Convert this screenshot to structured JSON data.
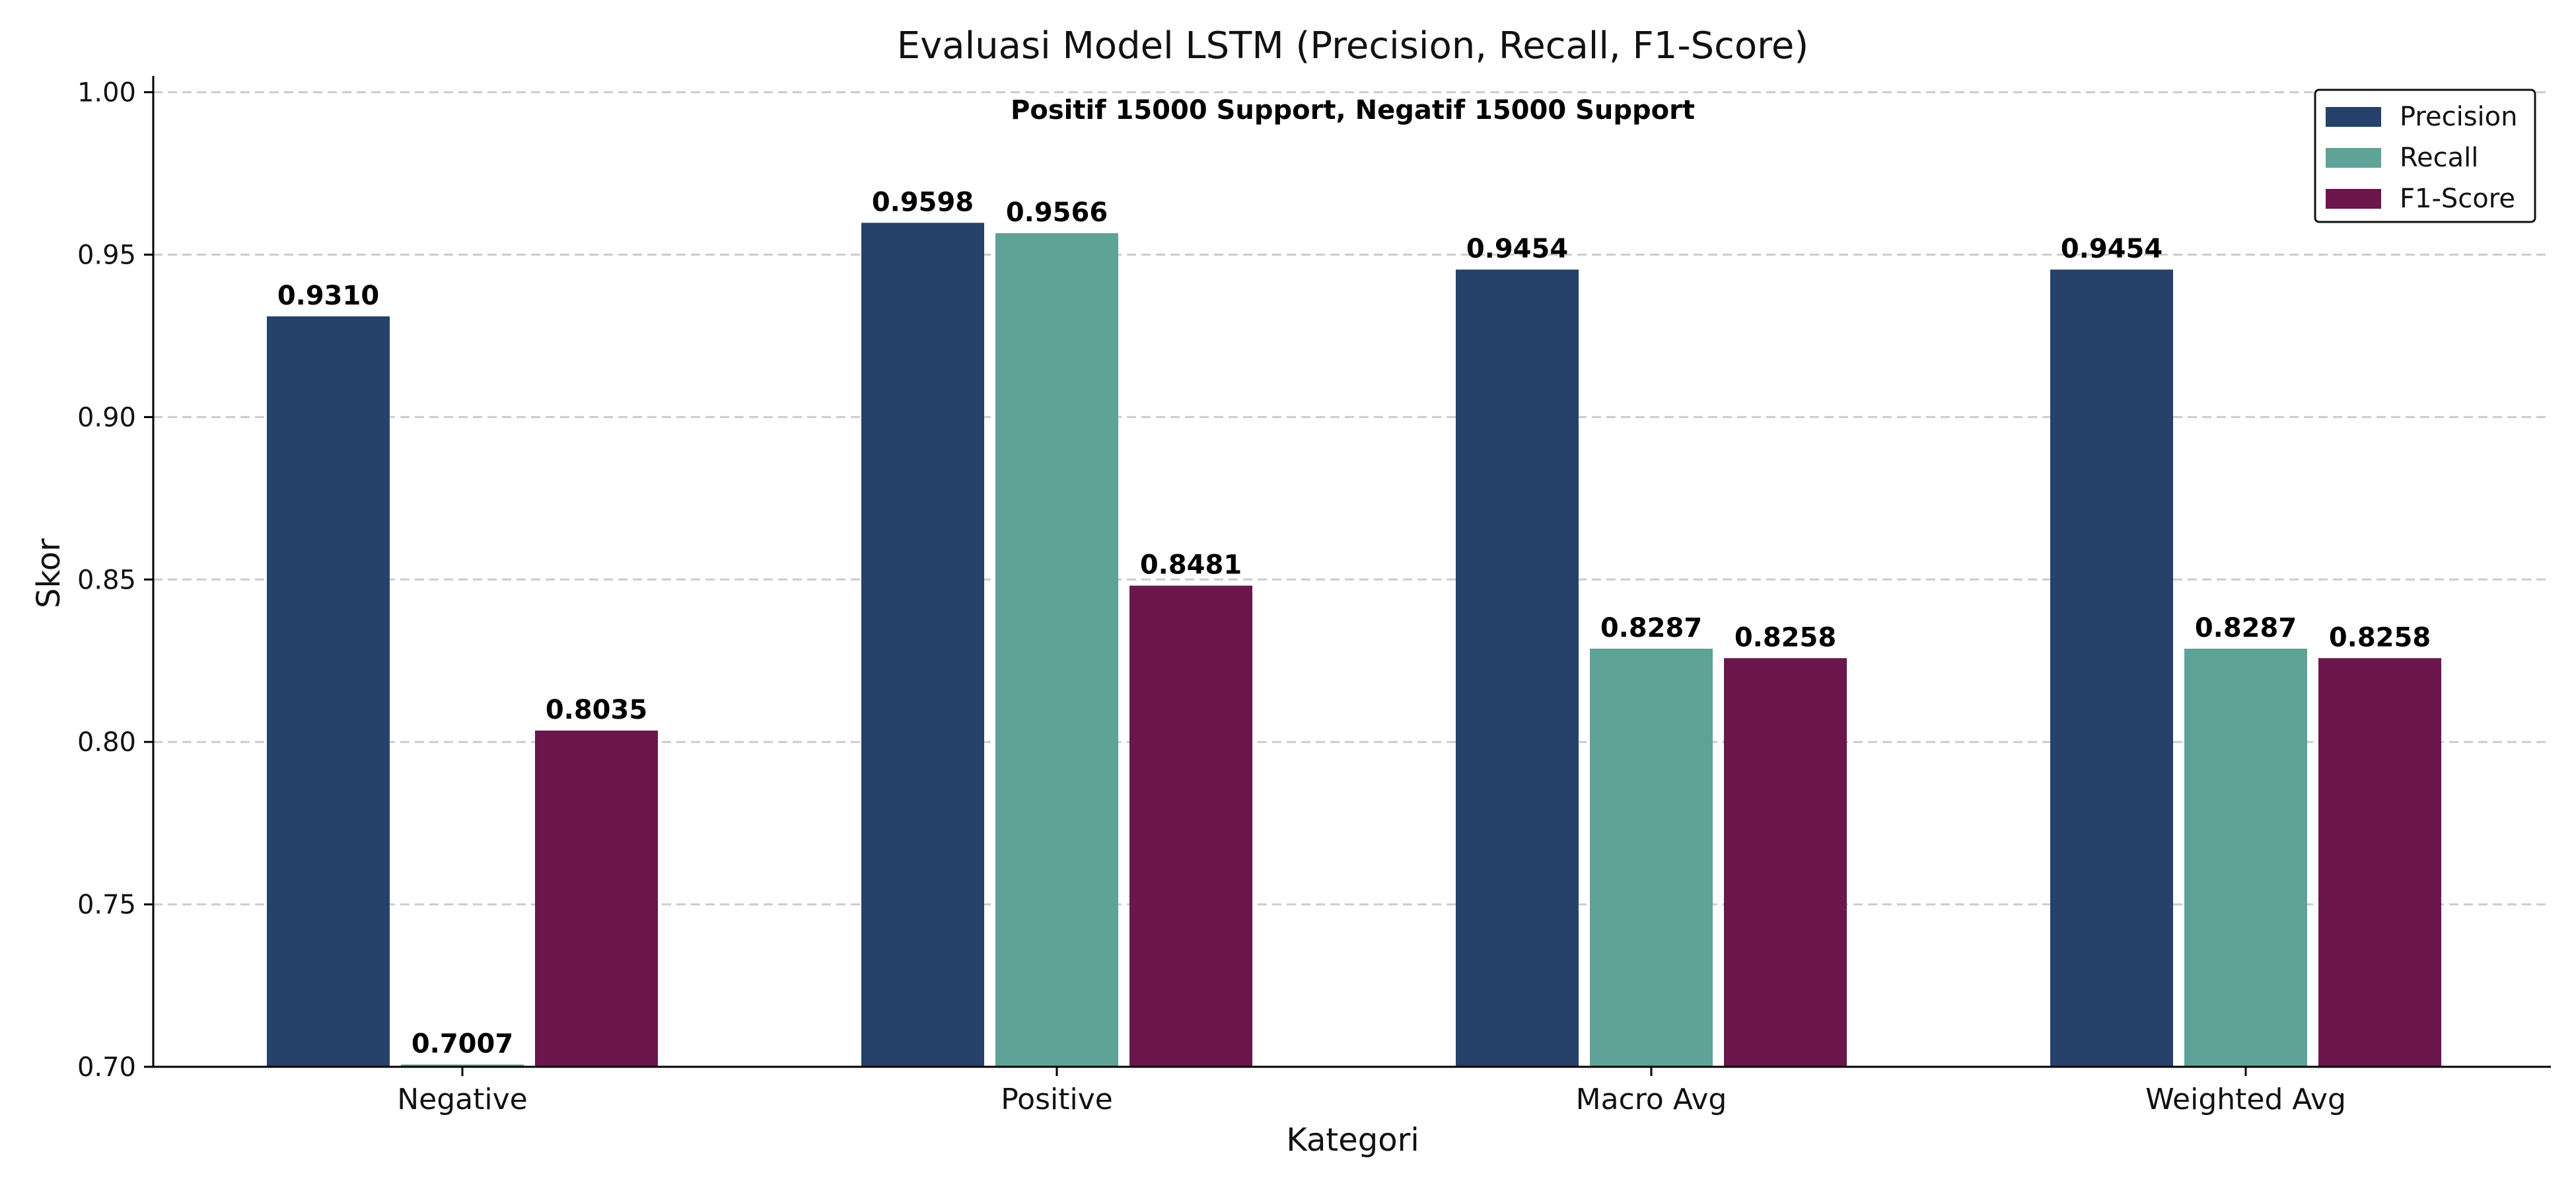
{
  "chart_data": {
    "type": "bar",
    "title": "Evaluasi Model LSTM (Precision, Recall, F1-Score)",
    "subtitle": "Positif 15000 Support, Negatif 15000 Support",
    "xlabel": "Kategori",
    "ylabel": "Skor",
    "ylim": [
      0.7,
      1.005
    ],
    "yticks": [
      "0.70",
      "0.75",
      "0.80",
      "0.85",
      "0.90",
      "0.95",
      "1.00"
    ],
    "grid": "y-dashed",
    "legend_position": "top-right",
    "categories": [
      "Negative",
      "Positive",
      "Macro Avg",
      "Weighted Avg"
    ],
    "series": [
      {
        "name": "Precision",
        "color": "#26416a",
        "values": [
          0.931,
          0.9598,
          0.9454,
          0.9454
        ],
        "labels": [
          "0.9310",
          "0.9598",
          "0.9454",
          "0.9454"
        ]
      },
      {
        "name": "Recall",
        "color": "#5fa297",
        "values": [
          0.7007,
          0.9566,
          0.8287,
          0.8287
        ],
        "labels": [
          "0.7007",
          "0.9566",
          "0.8287",
          "0.8287"
        ]
      },
      {
        "name": "F1-Score",
        "color": "#6b164d",
        "values": [
          0.8035,
          0.8481,
          0.8258,
          0.8258
        ],
        "labels": [
          "0.8035",
          "0.8481",
          "0.8258",
          "0.8258"
        ]
      }
    ]
  }
}
